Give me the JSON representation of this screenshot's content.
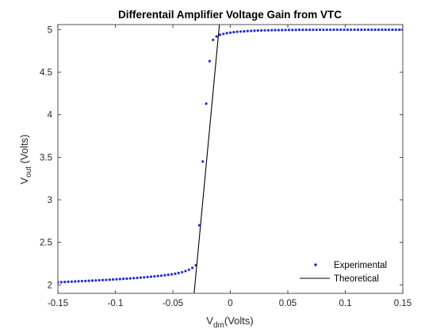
{
  "chart_data": {
    "type": "scatter",
    "title": "Differentail Amplifier Voltage Gain from VTC",
    "xlabel": {
      "main": "V",
      "sub": "dm",
      "rest": "(Volts)"
    },
    "ylabel": {
      "main": "V",
      "sub": "out",
      "rest": " (Volts)"
    },
    "xlim": [
      -0.15,
      0.15
    ],
    "ylim": [
      1.9,
      5.06
    ],
    "xticks": [
      -0.15,
      -0.1,
      -0.05,
      0,
      0.05,
      0.1,
      0.15
    ],
    "xtick_labels": [
      "-0.15",
      "-0.1",
      "-0.05",
      "0",
      "0.05",
      "0.1",
      "0.15"
    ],
    "yticks": [
      2,
      2.5,
      3,
      3.5,
      4,
      4.5,
      5
    ],
    "ytick_labels": [
      "2",
      "2.5",
      "3",
      "3.5",
      "4",
      "4.5",
      "5"
    ],
    "grid": false,
    "legend_position": "bottom-right",
    "series": [
      {
        "name": "Experimental",
        "style": "markers",
        "color": "#1f2fd6",
        "x": [
          -0.15,
          -0.147,
          -0.144,
          -0.141,
          -0.138,
          -0.135,
          -0.132,
          -0.129,
          -0.126,
          -0.123,
          -0.12,
          -0.117,
          -0.114,
          -0.111,
          -0.108,
          -0.105,
          -0.102,
          -0.099,
          -0.096,
          -0.093,
          -0.09,
          -0.087,
          -0.084,
          -0.081,
          -0.078,
          -0.075,
          -0.072,
          -0.069,
          -0.066,
          -0.063,
          -0.06,
          -0.057,
          -0.054,
          -0.051,
          -0.048,
          -0.045,
          -0.042,
          -0.039,
          -0.036,
          -0.033,
          -0.03,
          -0.027,
          -0.024,
          -0.021,
          -0.018,
          -0.015,
          -0.012,
          -0.009,
          -0.006,
          -0.003,
          0,
          0.003,
          0.006,
          0.009,
          0.012,
          0.015,
          0.018,
          0.021,
          0.024,
          0.027,
          0.03,
          0.033,
          0.036,
          0.039,
          0.042,
          0.045,
          0.048,
          0.051,
          0.054,
          0.057,
          0.06,
          0.063,
          0.066,
          0.069,
          0.072,
          0.075,
          0.078,
          0.081,
          0.084,
          0.087,
          0.09,
          0.093,
          0.096,
          0.099,
          0.102,
          0.105,
          0.108,
          0.111,
          0.114,
          0.117,
          0.12,
          0.123,
          0.126,
          0.129,
          0.132,
          0.135,
          0.138,
          0.141,
          0.144,
          0.147,
          0.15
        ],
        "y": [
          2.03,
          2.032,
          2.034,
          2.036,
          2.038,
          2.04,
          2.042,
          2.044,
          2.046,
          2.048,
          2.05,
          2.052,
          2.054,
          2.056,
          2.058,
          2.061,
          2.063,
          2.066,
          2.068,
          2.071,
          2.073,
          2.076,
          2.079,
          2.082,
          2.085,
          2.088,
          2.092,
          2.096,
          2.1,
          2.104,
          2.108,
          2.113,
          2.118,
          2.124,
          2.131,
          2.139,
          2.149,
          2.162,
          2.178,
          2.2,
          2.23,
          2.7,
          3.45,
          4.13,
          4.63,
          4.88,
          4.92,
          4.94,
          4.95,
          4.96,
          4.965,
          4.97,
          4.975,
          4.978,
          4.981,
          4.984,
          4.986,
          4.988,
          4.99,
          4.991,
          4.992,
          4.993,
          4.994,
          4.995,
          4.995,
          4.996,
          4.996,
          4.997,
          4.997,
          4.997,
          4.998,
          4.998,
          4.998,
          4.998,
          4.999,
          4.999,
          4.999,
          4.999,
          4.999,
          4.999,
          5.0,
          5.0,
          5.0,
          5.0,
          5.0,
          5.0,
          5.0,
          5.0,
          5.0,
          5.0,
          5.0,
          5.0,
          5.0,
          5.0,
          5.0,
          5.0,
          5.0,
          5.0,
          5.0,
          5.0,
          5.0
        ]
      },
      {
        "name": "Theoretical",
        "style": "line",
        "color": "#000000",
        "x": [
          -0.0315,
          -0.0095
        ],
        "y": [
          1.9,
          5.06
        ]
      }
    ]
  }
}
